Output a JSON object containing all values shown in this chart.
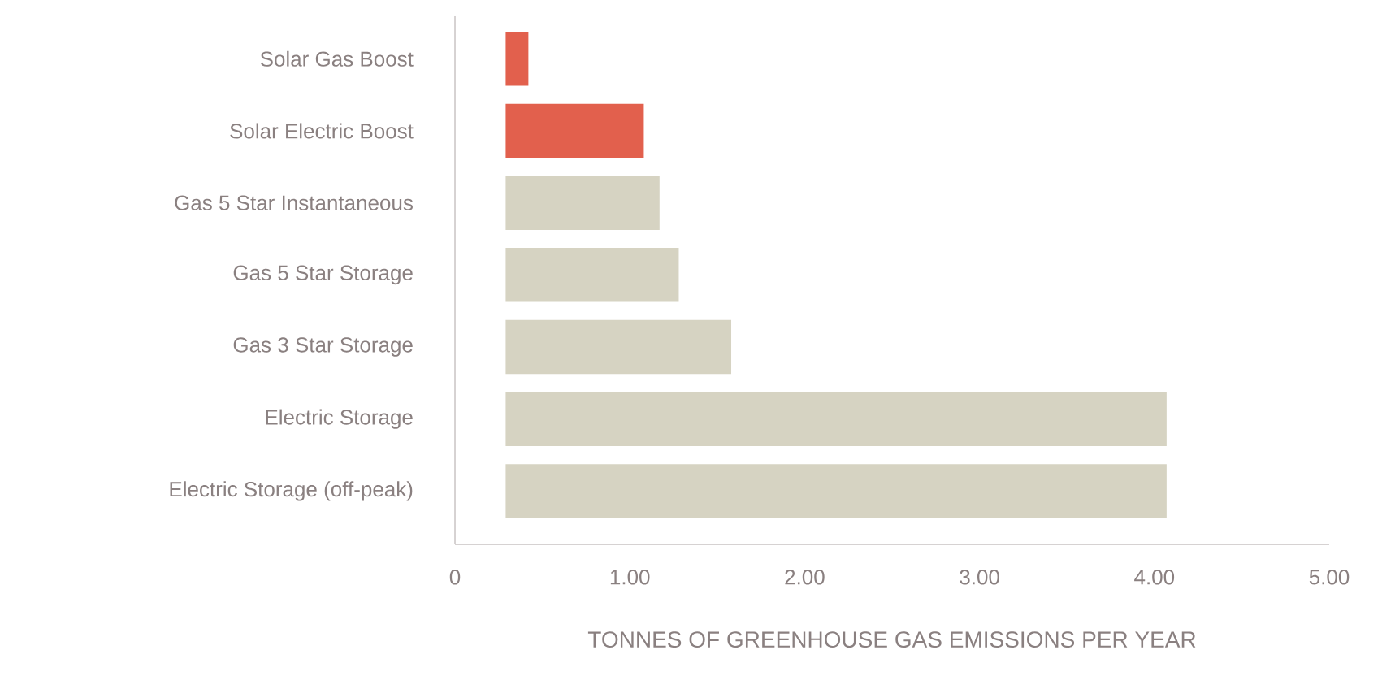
{
  "chart_data": {
    "type": "bar",
    "orientation": "horizontal",
    "xlabel": "TONNES OF GREENHOUSE GAS EMISSIONS PER YEAR",
    "categories": [
      "Solar Gas Boost",
      "Solar Electric Boost",
      "Gas 5 Star Instantaneous",
      "Gas 5 Star Storage",
      "Gas 3 Star Storage",
      "Electric Storage",
      "Electric Storage (off-peak)"
    ],
    "base": [
      0.29,
      0.29,
      0.29,
      0.29,
      0.29,
      0.29,
      0.29
    ],
    "values": [
      0.13,
      0.79,
      0.88,
      0.99,
      1.29,
      3.78,
      3.78
    ],
    "colors": [
      "#e2604d",
      "#e2604d",
      "#d6d3c2",
      "#d6d3c2",
      "#d6d3c2",
      "#d6d3c2",
      "#d6d3c2"
    ],
    "xlim": [
      0,
      5
    ],
    "xticks": [
      0,
      {
        "value": 1,
        "label": "1.00"
      },
      {
        "value": 2,
        "label": "2.00"
      },
      {
        "value": 3,
        "label": "3.00"
      },
      {
        "value": 4,
        "label": "4.00"
      },
      {
        "value": 5,
        "label": "5.00"
      }
    ],
    "grid": false
  }
}
